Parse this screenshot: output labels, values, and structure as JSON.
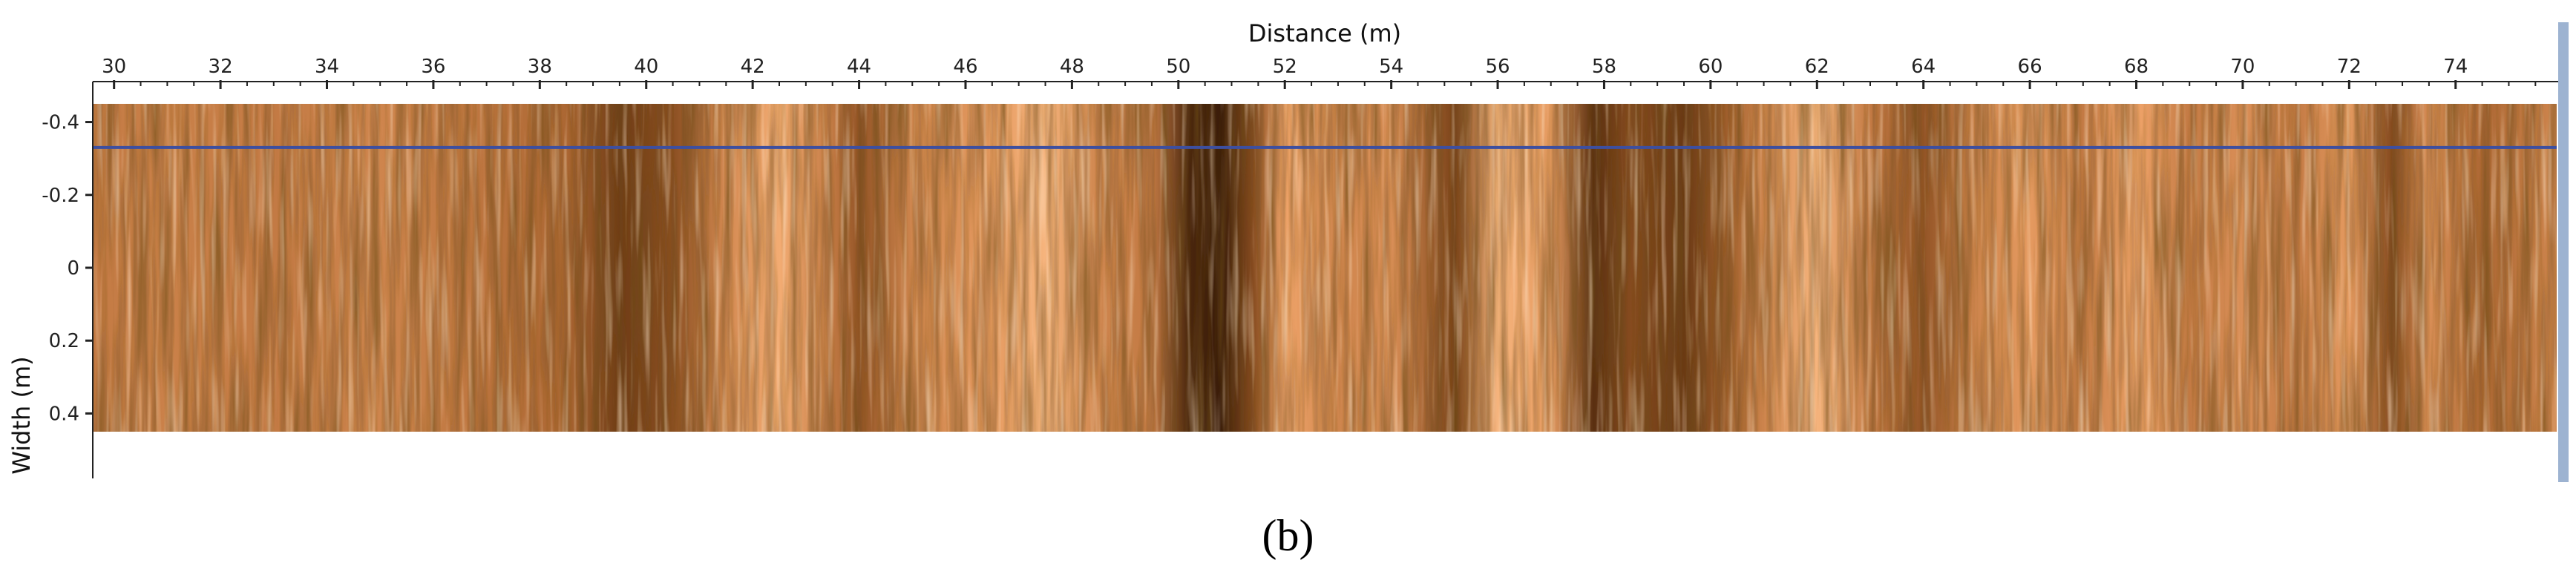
{
  "panel_label": "(b)",
  "chart_data": {
    "type": "heatmap",
    "title": "",
    "xlabel": "Distance (m)",
    "ylabel": "Width (m)",
    "xlim": [
      29.6,
      75.9
    ],
    "ylim": [
      -0.45,
      0.45
    ],
    "x_ticks": [
      "30",
      "32",
      "34",
      "36",
      "38",
      "40",
      "42",
      "44",
      "46",
      "48",
      "50",
      "52",
      "54",
      "56",
      "58",
      "60",
      "62",
      "64",
      "66",
      "68",
      "70",
      "72",
      "74"
    ],
    "x_tick_values": [
      30,
      32,
      34,
      36,
      38,
      40,
      42,
      44,
      46,
      48,
      50,
      52,
      54,
      56,
      58,
      60,
      62,
      64,
      66,
      68,
      70,
      72,
      74
    ],
    "y_ticks": [
      "-0.4",
      "-0.2",
      "0",
      "0.2",
      "0.4"
    ],
    "y_tick_values": [
      -0.4,
      -0.2,
      0,
      0.2,
      0.4
    ],
    "x_axis_position": "top",
    "colormap": [
      "#2a1305",
      "#7a4218",
      "#b8703a",
      "#f0a46a",
      "#ffcc99"
    ],
    "reference_line": {
      "width_m": -0.33,
      "color": "#3d4fa0"
    },
    "right_marker_color": "#9db3d1",
    "intensity_profile": [
      {
        "x": 29.6,
        "v": 0.55
      },
      {
        "x": 31,
        "v": 0.58
      },
      {
        "x": 33,
        "v": 0.55
      },
      {
        "x": 35,
        "v": 0.6
      },
      {
        "x": 37,
        "v": 0.52
      },
      {
        "x": 38.5,
        "v": 0.45
      },
      {
        "x": 39.5,
        "v": 0.22
      },
      {
        "x": 40.5,
        "v": 0.32
      },
      {
        "x": 41.5,
        "v": 0.62
      },
      {
        "x": 42.5,
        "v": 0.8
      },
      {
        "x": 43.5,
        "v": 0.55
      },
      {
        "x": 44,
        "v": 0.35
      },
      {
        "x": 45,
        "v": 0.6
      },
      {
        "x": 46.5,
        "v": 0.7
      },
      {
        "x": 47.5,
        "v": 0.85
      },
      {
        "x": 48.5,
        "v": 0.6
      },
      {
        "x": 49.5,
        "v": 0.55
      },
      {
        "x": 50.2,
        "v": 0.1
      },
      {
        "x": 50.8,
        "v": 0.05
      },
      {
        "x": 51.4,
        "v": 0.3
      },
      {
        "x": 52,
        "v": 0.75
      },
      {
        "x": 53,
        "v": 0.6
      },
      {
        "x": 54,
        "v": 0.65
      },
      {
        "x": 55.2,
        "v": 0.25
      },
      {
        "x": 56,
        "v": 0.85
      },
      {
        "x": 57,
        "v": 0.7
      },
      {
        "x": 57.8,
        "v": 0.15
      },
      {
        "x": 58.5,
        "v": 0.3
      },
      {
        "x": 59.5,
        "v": 0.2
      },
      {
        "x": 60.3,
        "v": 0.4
      },
      {
        "x": 61,
        "v": 0.6
      },
      {
        "x": 62,
        "v": 0.85
      },
      {
        "x": 63,
        "v": 0.55
      },
      {
        "x": 64,
        "v": 0.35
      },
      {
        "x": 65,
        "v": 0.6
      },
      {
        "x": 66,
        "v": 0.7
      },
      {
        "x": 67,
        "v": 0.55
      },
      {
        "x": 68,
        "v": 0.75
      },
      {
        "x": 69,
        "v": 0.55
      },
      {
        "x": 70,
        "v": 0.65
      },
      {
        "x": 71,
        "v": 0.55
      },
      {
        "x": 72,
        "v": 0.7
      },
      {
        "x": 72.8,
        "v": 0.3
      },
      {
        "x": 73.5,
        "v": 0.65
      },
      {
        "x": 74.5,
        "v": 0.45
      },
      {
        "x": 75.9,
        "v": 0.6
      }
    ]
  }
}
